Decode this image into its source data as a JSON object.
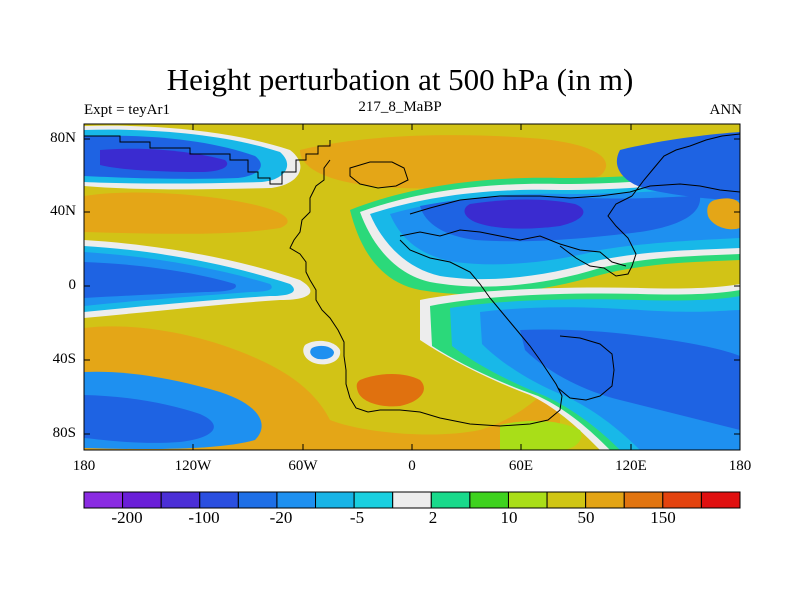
{
  "title": "Height perturbation at 500 hPa (in m)",
  "experiment_label": "Expt = teyAr1",
  "period_label": "217_8_MaBP",
  "season_label": "ANN",
  "lat_ticks": [
    "80N",
    "40N",
    "0",
    "40S",
    "80S"
  ],
  "lon_ticks": [
    "180",
    "120W",
    "60W",
    "0",
    "60E",
    "120E",
    "180"
  ],
  "colorbar": {
    "labels": [
      "-200",
      "-100",
      "-20",
      "-5",
      "2",
      "10",
      "50",
      "150"
    ],
    "colors": [
      "#8A2BE2",
      "#6A1FD8",
      "#4B2FD6",
      "#2A4FE0",
      "#1E6FE6",
      "#1E90F0",
      "#18B4E6",
      "#1ACFE0",
      "#EDEDED",
      "#19D98B",
      "#3ED21E",
      "#A9DE18",
      "#CFC514",
      "#E3A415",
      "#E1740F",
      "#E4430E",
      "#E01010"
    ]
  },
  "palette": {
    "deep_blue": "#3A2BD0",
    "blue": "#1E63E3",
    "mid_blue": "#1E90F0",
    "cyan": "#18B8E8",
    "white": "#EDEDED",
    "green": "#2BD97A",
    "light_green": "#A9DE18",
    "yellow": "#D2C316",
    "orange": "#E4A617",
    "dark_orange": "#E0710F"
  }
}
